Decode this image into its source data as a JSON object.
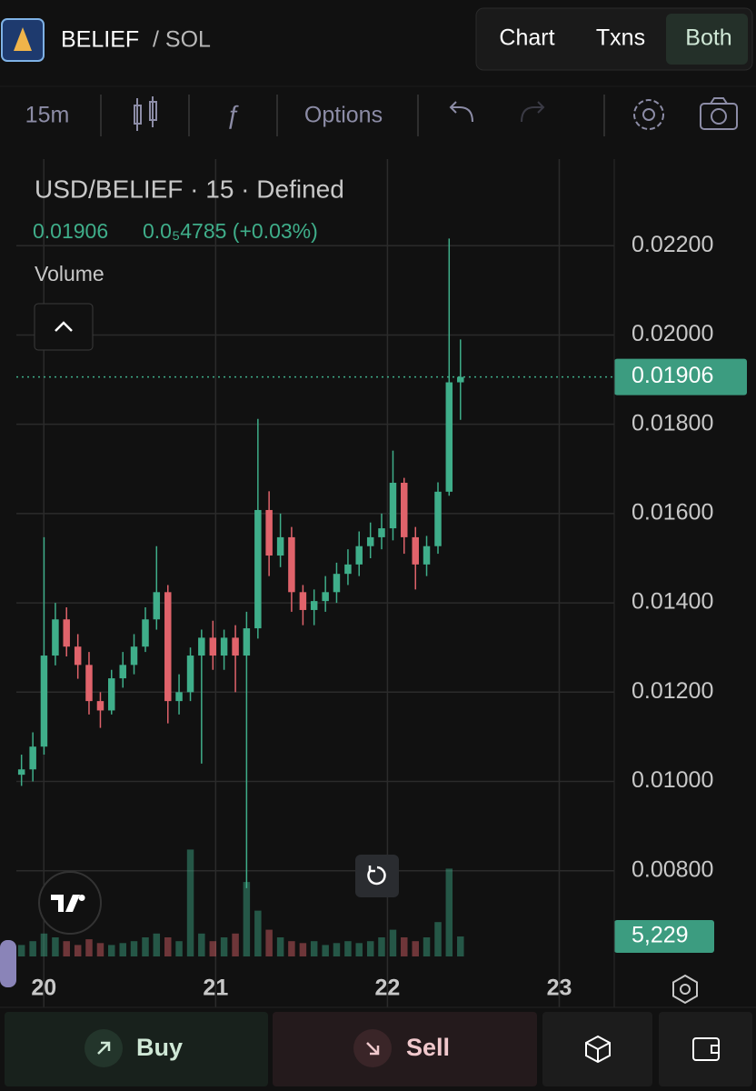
{
  "header": {
    "token": "BELIEF",
    "pair": "/ SOL"
  },
  "tabs": [
    "Chart",
    "Txns",
    "Both"
  ],
  "toolbar": {
    "interval": "15m",
    "options": "Options"
  },
  "legend": {
    "title": "USD/BELIEF · 15 · Defined",
    "price": "0.01906",
    "change": "0.0₅4785 (+0.03%)",
    "volume": "Volume"
  },
  "chart_data": {
    "type": "candlestick",
    "up_color": "#3fae8a",
    "down_color": "#e0636b",
    "x": [
      19.87,
      19.936,
      20.001,
      20.067,
      20.132,
      20.198,
      20.263,
      20.329,
      20.394,
      20.46,
      20.525,
      20.591,
      20.656,
      20.722,
      20.787,
      20.853,
      20.918,
      20.984,
      21.049,
      21.115,
      21.18,
      21.246,
      21.311,
      21.377,
      21.442,
      21.508,
      21.573,
      21.639,
      21.704,
      21.77,
      21.835,
      21.901,
      21.966,
      22.032,
      22.097,
      22.163,
      22.228,
      22.294,
      22.359,
      22.425
    ],
    "open": [
      0.01015,
      0.01027,
      0.01078,
      0.01282,
      0.01363,
      0.01302,
      0.01261,
      0.0118,
      0.01159,
      0.01231,
      0.01261,
      0.01302,
      0.01363,
      0.01424,
      0.0118,
      0.012,
      0.01282,
      0.01322,
      0.01282,
      0.01322,
      0.01282,
      0.01343,
      0.01608,
      0.01506,
      0.01547,
      0.01424,
      0.01384,
      0.01404,
      0.01424,
      0.01465,
      0.01486,
      0.01527,
      0.01547,
      0.01567,
      0.01669,
      0.01547,
      0.01486,
      0.01527,
      0.01649,
      0.01894
    ],
    "high": [
      0.0106,
      0.0111,
      0.01547,
      0.014,
      0.0139,
      0.0133,
      0.0129,
      0.012,
      0.0125,
      0.0129,
      0.0133,
      0.0139,
      0.01527,
      0.0144,
      0.0124,
      0.013,
      0.0134,
      0.0136,
      0.0134,
      0.0135,
      0.0138,
      0.01812,
      0.0165,
      0.016,
      0.0157,
      0.0144,
      0.0143,
      0.0146,
      0.0149,
      0.0152,
      0.0156,
      0.0158,
      0.016,
      0.01741,
      0.0168,
      0.0157,
      0.0155,
      0.0167,
      0.02216,
      0.0199
    ],
    "low": [
      0.0099,
      0.01,
      0.0106,
      0.0126,
      0.0128,
      0.0123,
      0.0115,
      0.0112,
      0.0115,
      0.0121,
      0.0124,
      0.0129,
      0.0134,
      0.0113,
      0.0115,
      0.0118,
      0.0104,
      0.0125,
      0.0125,
      0.012,
      0.00761,
      0.0132,
      0.0146,
      0.0148,
      0.0138,
      0.0135,
      0.0135,
      0.0138,
      0.014,
      0.0144,
      0.0146,
      0.015,
      0.0152,
      0.0154,
      0.0151,
      0.0143,
      0.0146,
      0.0151,
      0.0164,
      0.0181
    ],
    "close": [
      0.01027,
      0.01078,
      0.01282,
      0.01363,
      0.01302,
      0.01261,
      0.0118,
      0.01159,
      0.01231,
      0.01261,
      0.01302,
      0.01363,
      0.01424,
      0.0118,
      0.012,
      0.01282,
      0.01322,
      0.01282,
      0.01322,
      0.01282,
      0.01343,
      0.01608,
      0.01506,
      0.01547,
      0.01424,
      0.01384,
      0.01404,
      0.01424,
      0.01465,
      0.01486,
      0.01527,
      0.01547,
      0.01567,
      0.01669,
      0.01547,
      0.01486,
      0.01527,
      0.01649,
      0.01894,
      0.01906
    ],
    "volume": [
      3000,
      4000,
      6000,
      5000,
      4000,
      3000,
      4500,
      3500,
      3000,
      3500,
      4000,
      5000,
      6000,
      5000,
      4000,
      28000,
      6000,
      4000,
      5000,
      6000,
      19500,
      12000,
      7000,
      5000,
      4000,
      3500,
      4000,
      3000,
      3500,
      4000,
      3500,
      4000,
      5000,
      7000,
      5000,
      4000,
      5000,
      9000,
      23000,
      5229
    ],
    "xlim": [
      19.84,
      23.32
    ],
    "xticks": [
      20,
      21,
      22,
      23
    ],
    "ylim": [
      0.00608,
      0.02394
    ],
    "yticks": [
      {
        "value": 0.008,
        "label": "0.00800"
      },
      {
        "value": 0.01,
        "label": "0.01000"
      },
      {
        "value": 0.012,
        "label": "0.01200"
      },
      {
        "value": 0.014,
        "label": "0.01400"
      },
      {
        "value": 0.016,
        "label": "0.01600"
      },
      {
        "value": 0.018,
        "label": "0.01800"
      },
      {
        "value": 0.02,
        "label": "0.02000"
      },
      {
        "value": 0.022,
        "label": "0.02200"
      }
    ],
    "volume_lim": [
      0,
      40000
    ],
    "last_price": {
      "value": 0.01906,
      "label": "0.01906"
    },
    "last_volume": {
      "value": 5229,
      "label": "5,229"
    },
    "grid": true
  },
  "buttons": {
    "buy": "Buy",
    "sell": "Sell"
  }
}
